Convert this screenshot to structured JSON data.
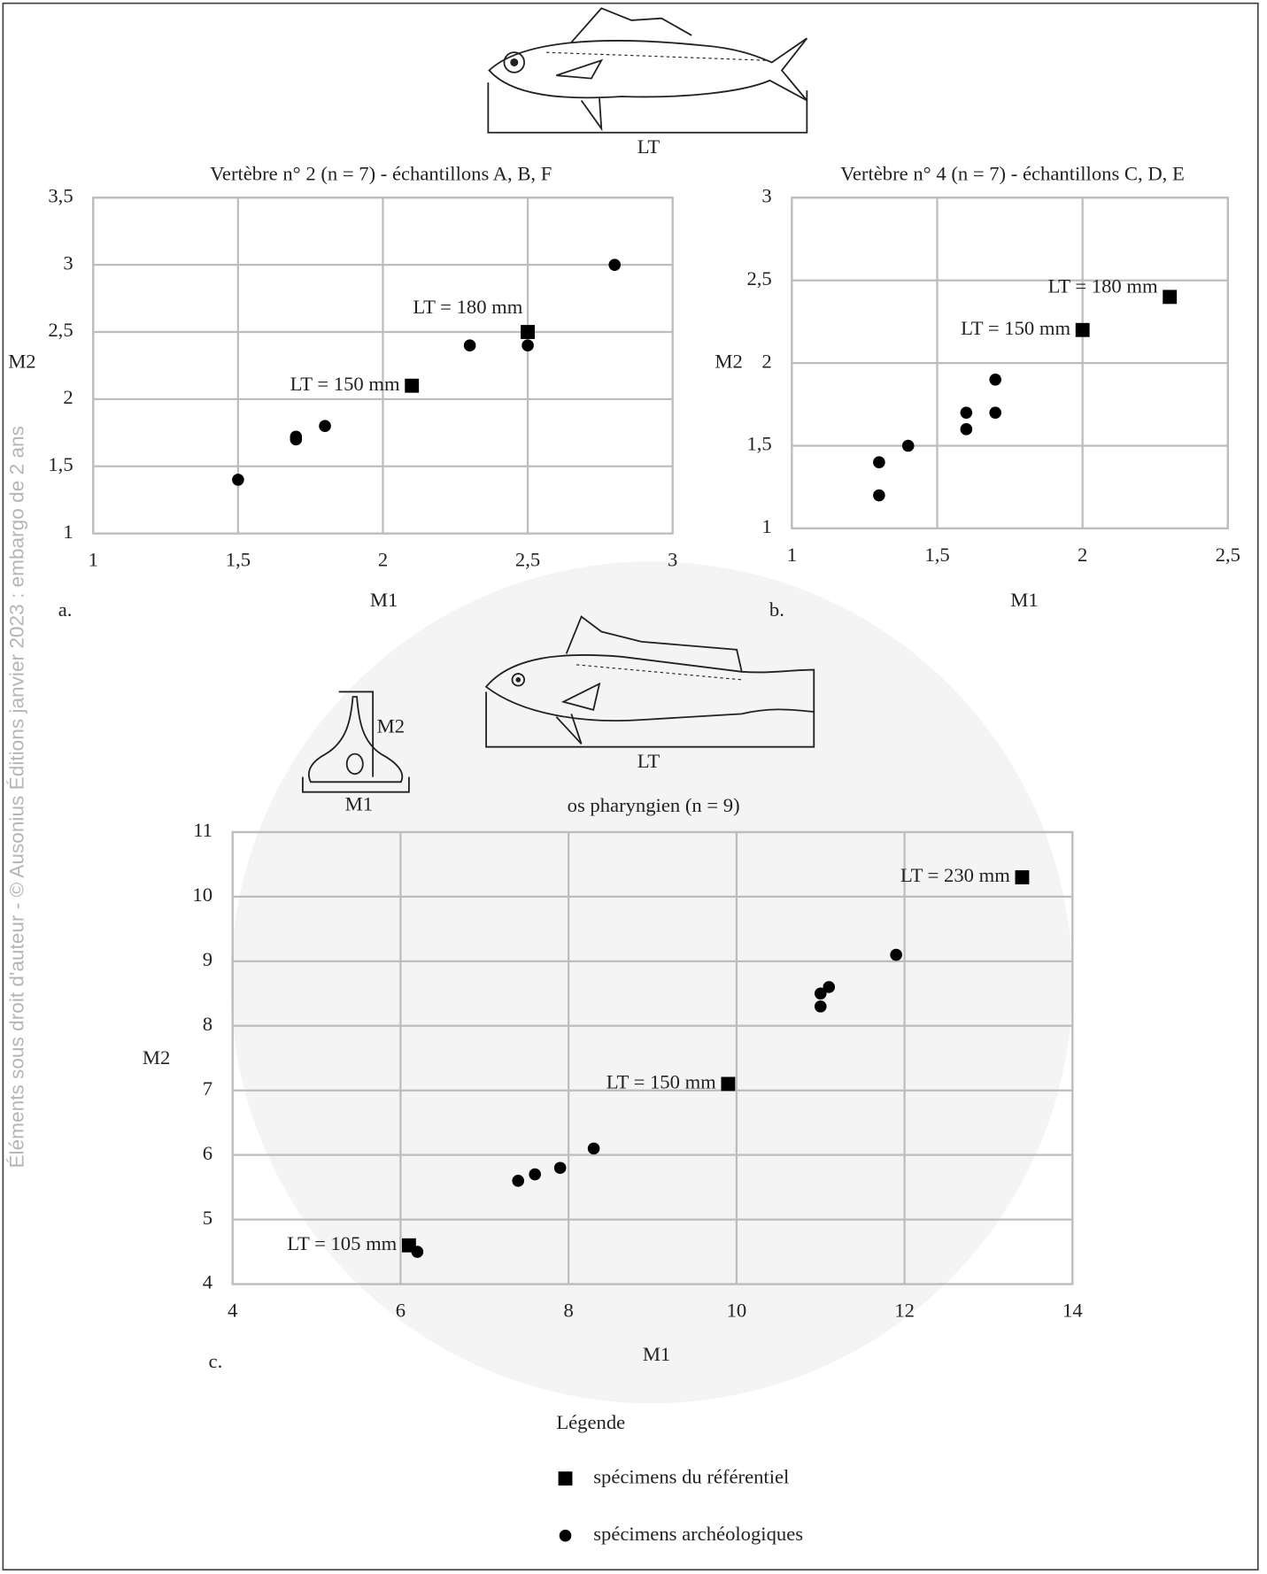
{
  "watermark": "Éléments sous droit d'auteur - © Ausonius Éditions janvier 2023 : embargo de 2 ans",
  "diagrams": {
    "fish_top": "LT",
    "fish_bottom": "LT",
    "bone_height": "M2",
    "bone_width": "M1"
  },
  "chart_data": [
    {
      "type": "scatter",
      "panel": "a.",
      "title": "Vertèbre n° 2 (n = 7) - échantillons A, B, F",
      "x_label": "M1",
      "y_label": "M2",
      "xlim": [
        1,
        3
      ],
      "ylim": [
        1,
        3.5
      ],
      "xticks": [
        1,
        {
          "value": 1.5,
          "label": "1,5"
        },
        2,
        {
          "value": 2.5,
          "label": "2,5"
        },
        3
      ],
      "yticks": [
        1,
        {
          "value": 1.5,
          "label": "1,5"
        },
        2,
        {
          "value": 2.5,
          "label": "2,5"
        },
        3,
        {
          "value": 3.5,
          "label": "3,5"
        }
      ],
      "grid": true,
      "series": [
        {
          "marker": "square",
          "color": "#000000",
          "x": [
            2.1,
            2.5
          ],
          "values": [
            2.1,
            2.5
          ],
          "labels": [
            "LT = 150 mm",
            "LT = 180 mm"
          ]
        },
        {
          "marker": "circle",
          "color": "#000000",
          "x": [
            1.5,
            1.7,
            1.7,
            1.8,
            2.3,
            2.5,
            2.8
          ],
          "values": [
            1.4,
            1.7,
            1.72,
            1.8,
            2.4,
            2.4,
            3
          ]
        }
      ]
    },
    {
      "type": "scatter",
      "panel": "b.",
      "title": "Vertèbre n° 4 (n = 7) - échantillons C, D, E",
      "x_label": "M1",
      "y_label": "M2",
      "xlim": [
        1,
        2.5
      ],
      "ylim": [
        1,
        3
      ],
      "xticks": [
        1,
        {
          "value": 1.5,
          "label": "1,5"
        },
        2,
        {
          "value": 2.5,
          "label": "2,5"
        }
      ],
      "yticks": [
        1,
        {
          "value": 1.5,
          "label": "1,5"
        },
        2,
        {
          "value": 2.5,
          "label": "2,5"
        },
        3
      ],
      "grid": true,
      "series": [
        {
          "marker": "square",
          "color": "#000000",
          "x": [
            2,
            2.3
          ],
          "values": [
            2.2,
            2.4
          ],
          "labels": [
            "LT = 150 mm",
            "LT = 180 mm"
          ]
        },
        {
          "marker": "circle",
          "color": "#000000",
          "x": [
            1.3,
            1.3,
            1.4,
            1.6,
            1.6,
            1.7,
            1.7
          ],
          "values": [
            1.4,
            1.2,
            1.5,
            1.7,
            1.6,
            1.9,
            1.7
          ]
        }
      ]
    },
    {
      "type": "scatter",
      "panel": "c.",
      "title": "os pharyngien (n = 9)",
      "x_label": "M1",
      "y_label": "M2",
      "xlim": [
        4,
        14
      ],
      "ylim": [
        4,
        11
      ],
      "xticks": [
        4,
        6,
        8,
        10,
        12,
        14
      ],
      "yticks": [
        4,
        5,
        6,
        7,
        8,
        9,
        10,
        11
      ],
      "grid": true,
      "legend_title": "Légende",
      "series": [
        {
          "name": "spécimens du référentiel",
          "marker": "square",
          "color": "#000000",
          "x": [
            6.1,
            9.9,
            13.4
          ],
          "values": [
            4.6,
            7.1,
            10.3
          ],
          "labels": [
            "LT = 105 mm",
            "LT = 150 mm",
            "LT = 230 mm"
          ]
        },
        {
          "name": "spécimens archéologiques",
          "marker": "circle",
          "color": "#000000",
          "x": [
            6.2,
            7.4,
            7.6,
            7.9,
            8.3,
            11,
            11,
            11.1,
            11.9
          ],
          "values": [
            4.5,
            5.6,
            5.7,
            5.8,
            6.1,
            8.3,
            8.5,
            8.6,
            9.1
          ]
        }
      ]
    }
  ]
}
